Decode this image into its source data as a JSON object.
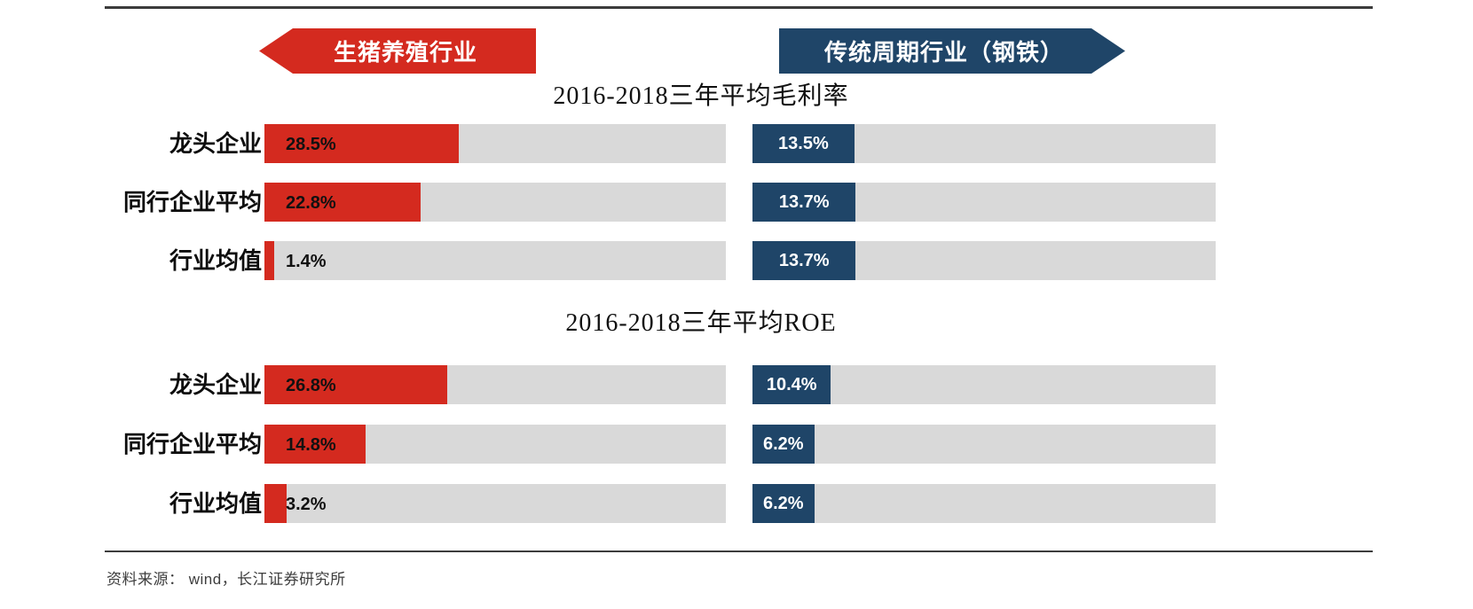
{
  "page": {
    "source_note": "资料来源： wind，长江证券研究所"
  },
  "banners": {
    "left": {
      "label": "生猪养殖行业",
      "color": "#d42a1f",
      "direction": "left"
    },
    "right": {
      "label": "传统周期行业（钢铁）",
      "color": "#1f4568",
      "direction": "right"
    }
  },
  "colors": {
    "red_series": "#d42a1f",
    "blue_series": "#1f4568",
    "track": "#d9d9d9",
    "rule": "#3c3c3c"
  },
  "chart_data": [
    {
      "type": "bar",
      "title": "2016-2018三年平均毛利率",
      "orientation": "horizontal",
      "categories": [
        "龙头企业",
        "同行企业平均",
        "行业均值"
      ],
      "series": [
        {
          "name": "生猪养殖行业",
          "color": "#d42a1f",
          "values": [
            28.5,
            22.8,
            1.4
          ],
          "labels": [
            "28.5%",
            "22.8%",
            "1.4%"
          ]
        },
        {
          "name": "传统周期行业（钢铁）",
          "color": "#1f4568",
          "values": [
            13.5,
            13.7,
            13.7
          ],
          "labels": [
            "13.5%",
            "13.7%",
            "13.7%"
          ]
        }
      ],
      "unit": "%",
      "xlim": [
        0,
        67
      ],
      "grid": false,
      "value_labels": true,
      "legend_position": "top-banners"
    },
    {
      "type": "bar",
      "title": "2016-2018三年平均ROE",
      "orientation": "horizontal",
      "categories": [
        "龙头企业",
        "同行企业平均",
        "行业均值"
      ],
      "series": [
        {
          "name": "生猪养殖行业",
          "color": "#d42a1f",
          "values": [
            26.8,
            14.8,
            3.2
          ],
          "labels": [
            "26.8%",
            "14.8%",
            "3.2%"
          ]
        },
        {
          "name": "传统周期行业（钢铁）",
          "color": "#1f4568",
          "values": [
            10.4,
            6.2,
            6.2
          ],
          "labels": [
            "10.4%",
            "6.2%",
            "6.2%"
          ]
        }
      ],
      "unit": "%",
      "xlim": [
        0,
        67
      ],
      "grid": false,
      "value_labels": true,
      "legend_position": "top-banners"
    }
  ]
}
